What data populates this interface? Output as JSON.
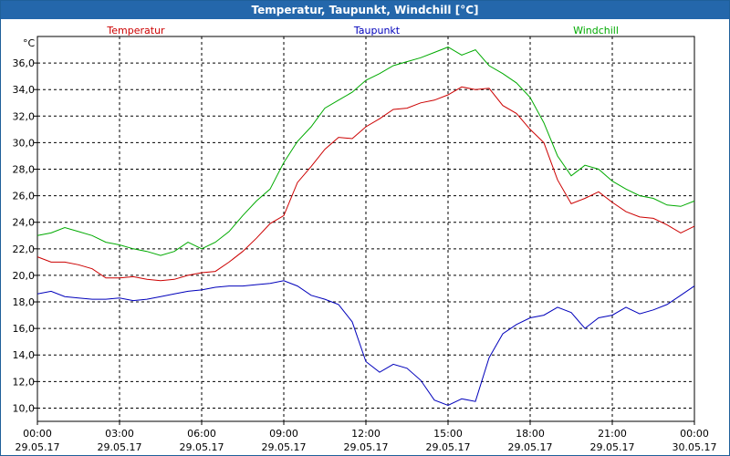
{
  "chart_data": {
    "type": "line",
    "title": "Temperatur, Taupunkt, Windchill [°C]",
    "ylabel": "°C",
    "ylim": [
      9,
      38
    ],
    "xlim": [
      0,
      24
    ],
    "yticks": [
      "10,0",
      "12,0",
      "14,0",
      "16,0",
      "18,0",
      "20,0",
      "22,0",
      "24,0",
      "26,0",
      "28,0",
      "30,0",
      "32,0",
      "34,0",
      "36,0"
    ],
    "xticks": [
      {
        "time": "00:00",
        "date": "29.05.17"
      },
      {
        "time": "03:00",
        "date": "29.05.17"
      },
      {
        "time": "06:00",
        "date": "29.05.17"
      },
      {
        "time": "09:00",
        "date": "29.05.17"
      },
      {
        "time": "12:00",
        "date": "29.05.17"
      },
      {
        "time": "15:00",
        "date": "29.05.17"
      },
      {
        "time": "18:00",
        "date": "29.05.17"
      },
      {
        "time": "21:00",
        "date": "29.05.17"
      },
      {
        "time": "00:00",
        "date": "30.05.17"
      }
    ],
    "series": [
      {
        "name": "Temperatur",
        "color": "#cc0000",
        "legend_pos": "left",
        "x": [
          0,
          0.5,
          1,
          1.5,
          2,
          2.5,
          3,
          3.5,
          4,
          4.5,
          5,
          5.5,
          6,
          6.5,
          7,
          7.5,
          8,
          8.5,
          9,
          9.5,
          10,
          10.5,
          11,
          11.5,
          12,
          12.5,
          13,
          13.5,
          14,
          14.5,
          15,
          15.5,
          16,
          16.5,
          17,
          17.5,
          18,
          18.5,
          19,
          19.5,
          20,
          20.5,
          21,
          21.5,
          22,
          22.5,
          23,
          23.5,
          24
        ],
        "values": [
          21.4,
          21.0,
          21.0,
          20.8,
          20.5,
          19.8,
          19.8,
          19.9,
          19.7,
          19.6,
          19.7,
          20.0,
          20.2,
          20.3,
          21.0,
          21.8,
          22.8,
          23.9,
          24.5,
          27.0,
          28.2,
          29.5,
          30.4,
          30.3,
          31.2,
          31.8,
          32.5,
          32.6,
          33.0,
          33.2,
          33.6,
          34.2,
          34.0,
          34.1,
          32.8,
          32.2,
          31.0,
          30.0,
          27.2,
          25.4,
          25.8,
          26.3,
          25.5,
          24.8,
          24.4,
          24.3,
          23.8,
          23.2,
          23.7
        ]
      },
      {
        "name": "Taupunkt",
        "color": "#0000bb",
        "legend_pos": "center",
        "x": [
          0,
          0.5,
          1,
          1.5,
          2,
          2.5,
          3,
          3.5,
          4,
          4.5,
          5,
          5.5,
          6,
          6.5,
          7,
          7.5,
          8,
          8.5,
          9,
          9.5,
          10,
          10.5,
          11,
          11.5,
          12,
          12.5,
          13,
          13.5,
          14,
          14.5,
          15,
          15.5,
          16,
          16.5,
          17,
          17.5,
          18,
          18.5,
          19,
          19.5,
          20,
          20.5,
          21,
          21.5,
          22,
          22.5,
          23,
          23.5,
          24
        ],
        "values": [
          18.6,
          18.8,
          18.4,
          18.3,
          18.2,
          18.2,
          18.3,
          18.1,
          18.2,
          18.4,
          18.6,
          18.8,
          18.9,
          19.1,
          19.2,
          19.2,
          19.3,
          19.4,
          19.6,
          19.2,
          18.5,
          18.2,
          17.8,
          16.5,
          13.5,
          12.7,
          13.3,
          13.0,
          12.1,
          10.6,
          10.2,
          10.7,
          10.5,
          13.8,
          15.6,
          16.3,
          16.8,
          17.0,
          17.6,
          17.2,
          16.0,
          16.8,
          17.0,
          17.6,
          17.1,
          17.4,
          17.8,
          18.5,
          19.2
        ]
      },
      {
        "name": "Windchill",
        "color": "#00aa00",
        "legend_pos": "right",
        "x": [
          0,
          0.5,
          1,
          1.5,
          2,
          2.5,
          3,
          3.5,
          4,
          4.5,
          5,
          5.5,
          6,
          6.5,
          7,
          7.5,
          8,
          8.5,
          9,
          9.5,
          10,
          10.5,
          11,
          11.5,
          12,
          12.5,
          13,
          13.5,
          14,
          14.5,
          15,
          15.5,
          16,
          16.5,
          17,
          17.5,
          18,
          18.5,
          19,
          19.5,
          20,
          20.5,
          21,
          21.5,
          22,
          22.5,
          23,
          23.5,
          24
        ],
        "values": [
          23.0,
          23.2,
          23.6,
          23.3,
          23.0,
          22.5,
          22.3,
          22.0,
          21.8,
          21.5,
          21.8,
          22.5,
          22.0,
          22.5,
          23.3,
          24.5,
          25.6,
          26.5,
          28.5,
          30.1,
          31.2,
          32.6,
          33.2,
          33.8,
          34.7,
          35.2,
          35.8,
          36.1,
          36.4,
          36.8,
          37.2,
          36.6,
          37.0,
          35.8,
          35.2,
          34.5,
          33.4,
          31.5,
          29.0,
          27.5,
          28.3,
          28.0,
          27.1,
          26.5,
          26.0,
          25.8,
          25.3,
          25.2,
          25.6
        ]
      }
    ]
  }
}
